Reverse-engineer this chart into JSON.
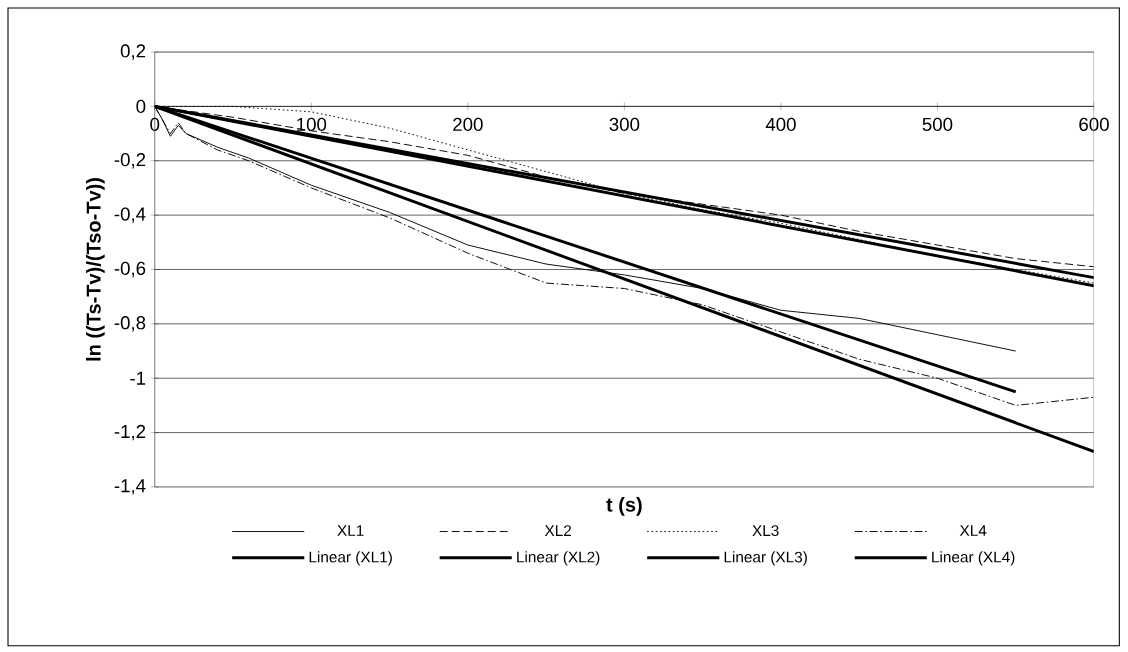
{
  "chart_data": {
    "type": "line",
    "xlabel": "t (s)",
    "ylabel": "ln ((Ts-Tv)/(Tso-Tv))",
    "xlim": [
      0,
      600
    ],
    "xticks": [
      0,
      100,
      200,
      300,
      400,
      500,
      600
    ],
    "ylim": [
      -1.4,
      0.2
    ],
    "yticks": [
      {
        "value": 0.2,
        "label": "0,2"
      },
      0,
      {
        "value": -0.2,
        "label": "-0,2"
      },
      {
        "value": -0.4,
        "label": "-0,4"
      },
      {
        "value": -0.6,
        "label": "-0,6"
      },
      {
        "value": -0.8,
        "label": "-0,8"
      },
      -1,
      {
        "value": -1.2,
        "label": "-1,2"
      },
      {
        "value": -1.4,
        "label": "-1,4"
      }
    ],
    "grid": "y",
    "legend": "bottom",
    "marker": "none",
    "series": [
      {
        "name": "XL1",
        "color": "#000000",
        "line_style": "solid",
        "x": [
          0,
          5,
          10,
          15,
          20,
          40,
          60,
          100,
          150,
          200,
          250,
          300,
          350,
          400,
          450,
          500,
          550
        ],
        "values": [
          0,
          -0.05,
          -0.11,
          -0.07,
          -0.1,
          -0.15,
          -0.19,
          -0.29,
          -0.39,
          -0.51,
          -0.58,
          -0.62,
          -0.67,
          -0.75,
          -0.78,
          -0.84,
          -0.9
        ]
      },
      {
        "name": "XL2",
        "color": "#000000",
        "line_style": "dashed",
        "x": [
          0,
          50,
          100,
          150,
          200,
          250,
          300,
          350,
          400,
          450,
          500,
          550,
          600
        ],
        "values": [
          0,
          -0.04,
          -0.09,
          -0.13,
          -0.18,
          -0.26,
          -0.32,
          -0.36,
          -0.4,
          -0.46,
          -0.51,
          -0.56,
          -0.59
        ]
      },
      {
        "name": "XL3",
        "color": "#000000",
        "line_style": "dotted",
        "x": [
          0,
          50,
          100,
          150,
          200,
          250,
          300,
          350,
          400,
          450,
          500,
          550,
          600
        ],
        "values": [
          0,
          0,
          -0.02,
          -0.08,
          -0.16,
          -0.24,
          -0.32,
          -0.38,
          -0.43,
          -0.49,
          -0.55,
          -0.6,
          -0.65
        ]
      },
      {
        "name": "XL4",
        "color": "#000000",
        "line_style": "dashdot",
        "x": [
          0,
          5,
          10,
          15,
          20,
          40,
          60,
          100,
          150,
          200,
          250,
          300,
          350,
          400,
          450,
          500,
          550,
          600
        ],
        "values": [
          0,
          -0.05,
          -0.1,
          -0.06,
          -0.1,
          -0.16,
          -0.2,
          -0.3,
          -0.41,
          -0.54,
          -0.65,
          -0.67,
          -0.73,
          -0.83,
          -0.93,
          -1.0,
          -1.1,
          -1.07
        ]
      },
      {
        "name": "Linear (XL1)",
        "color": "#000000",
        "line_style": "solid",
        "x": [
          0,
          550
        ],
        "values": [
          0,
          -1.05
        ]
      },
      {
        "name": "Linear (XL2)",
        "color": "#000000",
        "line_style": "solid",
        "x": [
          0,
          600
        ],
        "values": [
          0,
          -0.63
        ]
      },
      {
        "name": "Linear (XL3)",
        "color": "#000000",
        "line_style": "solid",
        "x": [
          0,
          600
        ],
        "values": [
          0,
          -0.66
        ]
      },
      {
        "name": "Linear (XL4)",
        "color": "#000000",
        "line_style": "solid",
        "x": [
          0,
          600
        ],
        "values": [
          0,
          -1.27
        ]
      }
    ]
  }
}
